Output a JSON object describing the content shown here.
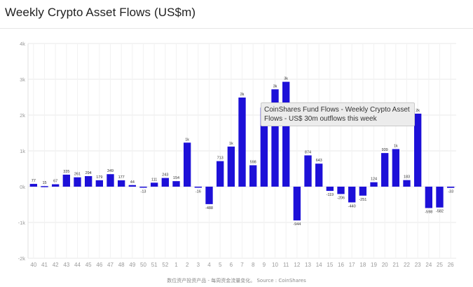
{
  "chart_data": {
    "type": "bar",
    "title": "Weekly Crypto Asset Flows (US$m)",
    "categories": [
      "40",
      "41",
      "42",
      "43",
      "44",
      "45",
      "46",
      "47",
      "48",
      "49",
      "50",
      "51",
      "52",
      "1",
      "2",
      "3",
      "4",
      "5",
      "6",
      "7",
      "8",
      "9",
      "10",
      "11",
      "12",
      "13",
      "14",
      "15",
      "16",
      "17",
      "18",
      "19",
      "20",
      "21",
      "22",
      "23",
      "24",
      "25",
      "26"
    ],
    "values": [
      77,
      15,
      67,
      335,
      261,
      294,
      179,
      349,
      177,
      44,
      -13,
      111,
      243,
      154,
      1230,
      -16,
      -488,
      713,
      1120,
      2490,
      598,
      2210,
      2720,
      2930,
      -944,
      874,
      643,
      -119,
      -206,
      -440,
      -251,
      124,
      939,
      1050,
      183,
      2040,
      -598,
      -582,
      -33
    ],
    "data_labels": [
      "77",
      "15",
      "67",
      "335",
      "261",
      "294",
      "179",
      "349",
      "177",
      "44",
      "-13",
      "111",
      "243",
      "154",
      "1k",
      "-16",
      "-488",
      "713",
      "1k",
      "2k",
      "598",
      "",
      "3k",
      "3k",
      "-944",
      "874",
      "643",
      "-119",
      "-206",
      "-440",
      "-251",
      "124",
      "939",
      "1k",
      "183",
      "2k",
      "-598",
      "-582",
      "-33"
    ],
    "y_tick_labels": [
      "4k",
      "3k",
      "2k",
      "1k",
      "0k",
      "-1k",
      "-2k"
    ],
    "ylim": [
      -2000,
      4000
    ],
    "bar_color": "#1d10d8",
    "grid": true,
    "tooltip": "CoinShares Fund Flows - Weekly Crypto Asset Flows - US$ 30m outflows this week",
    "source": "数位资产投资产品 - 每周资金流量变化。 Source : CoinShares"
  }
}
